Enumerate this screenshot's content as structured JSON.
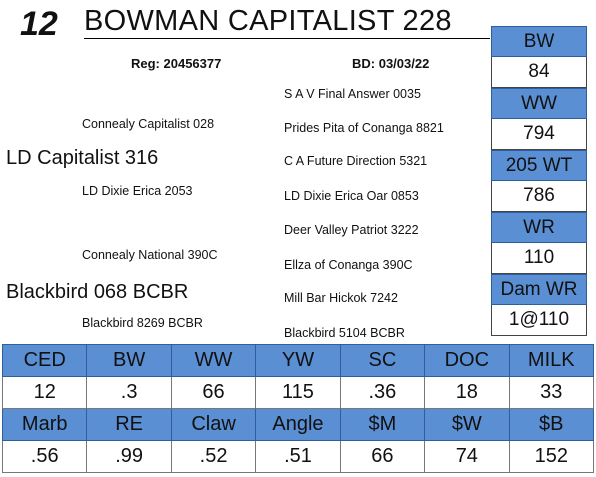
{
  "header": {
    "lot_number": "12",
    "animal_name": "BOWMAN CAPITALIST 228",
    "reg": "Reg: 20456377",
    "bd": "BD: 03/03/22"
  },
  "pedigree": {
    "sire": "LD Capitalist 316",
    "sire_sire": "Connealy Capitalist 028",
    "sire_dam": "LD Dixie Erica 2053",
    "dam": "Blackbird 068 BCBR",
    "dam_sire": "Connealy National 390C",
    "dam_dam": "Blackbird 8269 BCBR",
    "gp": [
      "S A V Final Answer 0035",
      "Prides Pita of Conanga 8821",
      "C A Future Direction 5321",
      "LD Dixie Erica Oar 0853",
      "Deer Valley Patriot 3222",
      "Ellza of Conanga 390C",
      "Mill Bar Hickok 7242",
      "Blackbird 5104 BCBR"
    ]
  },
  "weights": [
    {
      "label": "BW",
      "value": "84"
    },
    {
      "label": "WW",
      "value": "794"
    },
    {
      "label": "205 WT",
      "value": "786"
    },
    {
      "label": "WR",
      "value": "110"
    },
    {
      "label": "Dam WR",
      "value": "1@110"
    }
  ],
  "epds": {
    "row1_labels": [
      "CED",
      "BW",
      "WW",
      "YW",
      "SC",
      "DOC",
      "MILK"
    ],
    "row1_values": [
      "12",
      ".3",
      "66",
      "115",
      ".36",
      "18",
      "33"
    ],
    "row2_labels": [
      "Marb",
      "RE",
      "Claw",
      "Angle",
      "$M",
      "$W",
      "$B"
    ],
    "row2_values": [
      ".56",
      ".99",
      ".52",
      ".51",
      "66",
      "74",
      "152"
    ]
  },
  "colors": {
    "header_fill": "#5b8fd4",
    "border": "#2f5e9e"
  }
}
